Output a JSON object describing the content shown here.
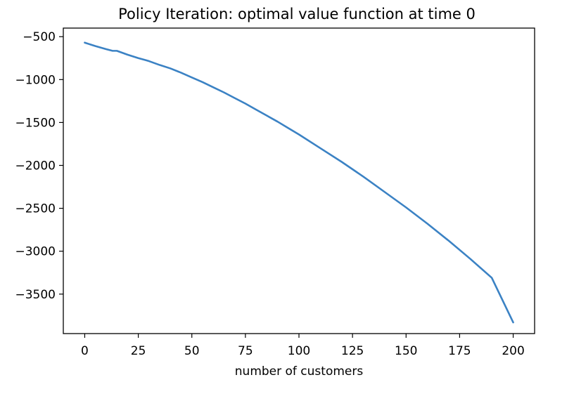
{
  "chart_data": {
    "type": "line",
    "title": "Policy Iteration: optimal value function at time 0",
    "xlabel": "number of customers",
    "ylabel": "",
    "xlim": [
      -10,
      210
    ],
    "ylim": [
      -3960,
      -400
    ],
    "x_ticks": [
      0,
      25,
      50,
      75,
      100,
      125,
      150,
      175,
      200
    ],
    "x_tick_labels": [
      "0",
      "25",
      "50",
      "75",
      "100",
      "125",
      "150",
      "175",
      "200"
    ],
    "y_ticks": [
      -500,
      -1000,
      -1500,
      -2000,
      -2500,
      -3000,
      -3500
    ],
    "y_tick_labels": [
      "−500",
      "−1000",
      "−1500",
      "−2000",
      "−2500",
      "−3000",
      "−3500"
    ],
    "grid": false,
    "series": [
      {
        "color": "#3b82c4",
        "x": [
          0,
          5,
          10,
          13,
          15,
          20,
          25,
          28,
          30,
          35,
          40,
          45,
          50,
          55,
          60,
          65,
          70,
          75,
          80,
          85,
          90,
          95,
          100,
          110,
          120,
          130,
          140,
          150,
          160,
          170,
          180,
          190,
          200
        ],
        "y": [
          -570,
          -610,
          -645,
          -665,
          -665,
          -710,
          -750,
          -770,
          -785,
          -830,
          -870,
          -920,
          -975,
          -1030,
          -1090,
          -1150,
          -1215,
          -1280,
          -1350,
          -1420,
          -1490,
          -1565,
          -1640,
          -1800,
          -1960,
          -2130,
          -2310,
          -2490,
          -2680,
          -2880,
          -3090,
          -3310,
          -3830
        ]
      }
    ]
  }
}
